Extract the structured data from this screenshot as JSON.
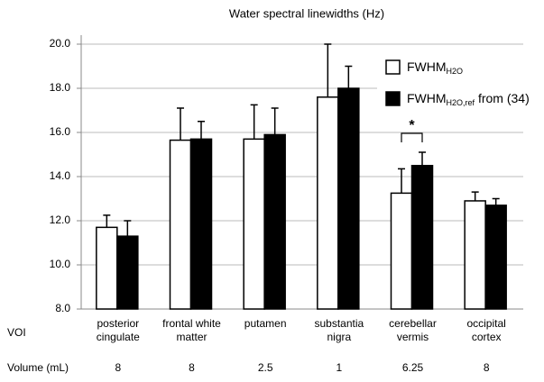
{
  "chart_data": {
    "type": "bar",
    "title": "Water spectral linewidths (Hz)",
    "categories": [
      "posterior cingulate",
      "frontal white matter",
      "putamen",
      "substantia nigra",
      "cerebellar vermis",
      "occipital cortex"
    ],
    "series": [
      {
        "name": "FWHM",
        "subscript": "H2O",
        "color": "#ffffff",
        "values": [
          11.7,
          15.65,
          15.7,
          17.6,
          13.25,
          12.9
        ],
        "errors": [
          0.55,
          1.45,
          1.55,
          2.4,
          1.1,
          0.4
        ]
      },
      {
        "name": "FWHM",
        "subscript": "H2O,ref",
        "suffix": " from (34)",
        "color": "#000000",
        "values": [
          11.3,
          15.7,
          15.9,
          18.0,
          14.5,
          12.7
        ],
        "errors": [
          0.7,
          0.8,
          1.2,
          1.0,
          0.6,
          0.3
        ]
      }
    ],
    "ylim": [
      8,
      20
    ],
    "yticks": [
      {
        "value": 8,
        "label": "8.0"
      },
      {
        "value": 10,
        "label": "10.0"
      },
      {
        "value": 12,
        "label": "12.0"
      },
      {
        "value": 14,
        "label": "14.0"
      },
      {
        "value": 16,
        "label": "16.0"
      },
      {
        "value": 18,
        "label": "18.0"
      },
      {
        "value": 20,
        "label": "20.0"
      }
    ],
    "grid": true,
    "legend": "upper right",
    "annotations": [
      {
        "text": "*",
        "category": "cerebellar vermis"
      }
    ],
    "row_labels": {
      "voi": "VOI",
      "volume": "Volume (mL)"
    },
    "volumes": [
      8,
      8,
      2.5,
      1,
      6.25,
      8
    ]
  }
}
